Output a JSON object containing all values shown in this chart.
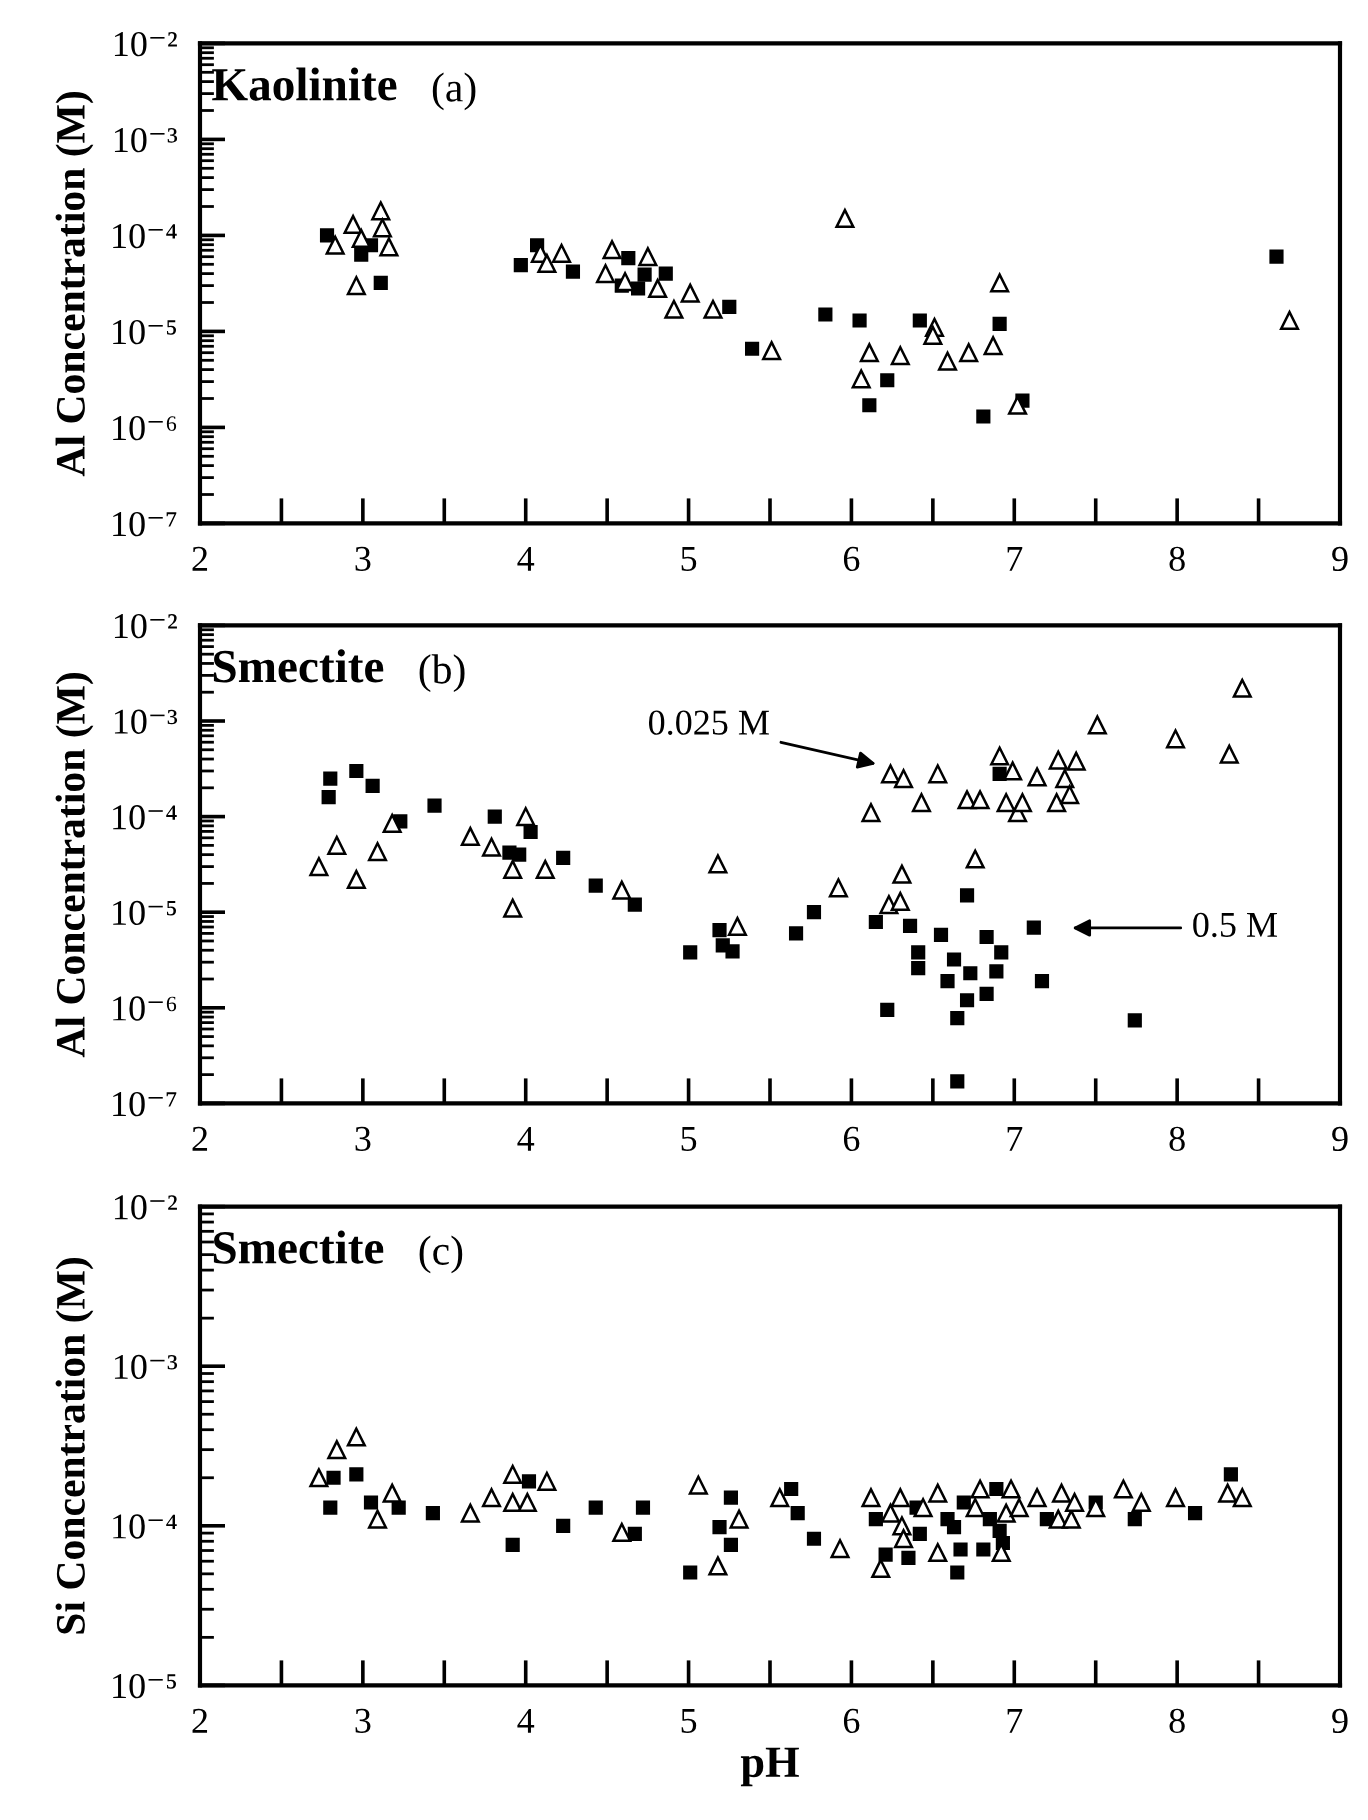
{
  "chart_data": [
    {
      "type": "scatter",
      "title": "Kaolinite",
      "subtitle": "(a)",
      "ylabel": "Al Concentration (M)",
      "log": true,
      "xlim": [
        2,
        9
      ],
      "xticks": [
        2,
        {
          "value": 2.5,
          "label": null
        },
        3,
        {
          "value": 3.5,
          "label": null
        },
        4,
        {
          "value": 4.5,
          "label": null
        },
        5,
        {
          "value": 5.5,
          "label": null
        },
        6,
        {
          "value": 6.5,
          "label": null
        },
        7,
        {
          "value": 7.5,
          "label": null
        },
        8,
        {
          "value": 8.5,
          "label": null
        },
        9
      ],
      "ylim": [
        1e-07,
        0.01
      ],
      "yticks": [
        {
          "value": 1e-07,
          "label": "10⁻⁷"
        },
        {
          "value": 1e-06,
          "label": "10⁻⁶"
        },
        {
          "value": 1e-05,
          "label": "10⁻⁵"
        },
        {
          "value": 0.0001,
          "label": "10⁻⁴"
        },
        {
          "value": 0.001,
          "label": "10⁻³"
        },
        {
          "value": 0.01,
          "label": "10⁻²"
        }
      ],
      "series": [
        {
          "color": "#000000",
          "marker": "square",
          "x": [
            2.78,
            2.99,
            3.05,
            3.11,
            3.97,
            4.07,
            4.29,
            4.63,
            4.59,
            4.69,
            4.73,
            4.86,
            5.25,
            5.39,
            5.84,
            6.05,
            6.11,
            6.22,
            6.42,
            6.91,
            6.81,
            7.05,
            8.61
          ],
          "values": [
            0.0001,
            6.3e-05,
            7.9e-05,
            3.2e-05,
            4.9e-05,
            7.9e-05,
            4.2e-05,
            5.8e-05,
            3e-05,
            2.8e-05,
            3.9e-05,
            4e-05,
            1.8e-05,
            6.6e-06,
            1.5e-05,
            1.3e-05,
            1.7e-06,
            3.1e-06,
            1.3e-05,
            1.2e-05,
            1.3e-06,
            1.9e-06,
            6e-05
          ]
        },
        {
          "color": "#ffffff",
          "marker": "triangle",
          "x": [
            2.83,
            2.94,
            2.99,
            3.11,
            3.12,
            3.16,
            2.96,
            4.09,
            4.13,
            4.22,
            4.53,
            4.49,
            4.61,
            4.75,
            4.81,
            4.91,
            5.01,
            5.15,
            5.51,
            5.96,
            6.11,
            6.06,
            6.3,
            6.51,
            6.5,
            6.59,
            6.72,
            6.87,
            6.91,
            7.02,
            8.69
          ],
          "values": [
            7.9e-05,
            0.00013,
            9.3e-05,
            0.00018,
            0.00012,
            7.6e-05,
            3e-05,
            6.5e-05,
            5.1e-05,
            6.5e-05,
            7.1e-05,
            4e-05,
            3.3e-05,
            6e-05,
            2.8e-05,
            1.7e-05,
            2.5e-05,
            1.7e-05,
            6.3e-06,
            0.00015,
            6e-06,
            3.2e-06,
            5.6e-06,
            1.1e-05,
            9.1e-06,
            4.9e-06,
            6e-06,
            7.1e-06,
            3.2e-05,
            1.7e-06,
            1.3e-05
          ]
        }
      ]
    },
    {
      "type": "scatter",
      "title": "Smectite",
      "subtitle": "(b)",
      "ylabel": "Al Concentration (M)",
      "log": true,
      "xlim": [
        2,
        9
      ],
      "xticks": [
        2,
        {
          "value": 2.5,
          "label": null
        },
        3,
        {
          "value": 3.5,
          "label": null
        },
        4,
        {
          "value": 4.5,
          "label": null
        },
        5,
        {
          "value": 5.5,
          "label": null
        },
        6,
        {
          "value": 6.5,
          "label": null
        },
        7,
        {
          "value": 7.5,
          "label": null
        },
        8,
        {
          "value": 8.5,
          "label": null
        },
        9
      ],
      "ylim": [
        1e-07,
        0.01
      ],
      "yticks": [
        {
          "value": 1e-07,
          "label": "10⁻⁷"
        },
        {
          "value": 1e-06,
          "label": "10⁻⁶"
        },
        {
          "value": 1e-05,
          "label": "10⁻⁵"
        },
        {
          "value": 0.0001,
          "label": "10⁻⁴"
        },
        {
          "value": 0.001,
          "label": "10⁻³"
        },
        {
          "value": 0.01,
          "label": "10⁻²"
        }
      ],
      "annotations": [
        "0.025 M",
        "0.5 M"
      ],
      "series": [
        {
          "color": "#000000",
          "marker": "square",
          "x": [
            2.8,
            2.79,
            2.96,
            3.06,
            3.23,
            3.44,
            3.81,
            4.03,
            3.9,
            3.96,
            4.23,
            4.43,
            4.67,
            5.01,
            5.19,
            5.21,
            5.27,
            6.91,
            5.66,
            5.77,
            6.15,
            6.36,
            6.55,
            6.71,
            6.41,
            6.41,
            6.63,
            6.83,
            6.92,
            6.89,
            6.73,
            6.83,
            6.71,
            6.59,
            6.65,
            6.22,
            7.12,
            7.17,
            7.74,
            6.65
          ],
          "values": [
            0.00025,
            0.00016,
            0.0003,
            0.00021,
            8.9e-05,
            0.00013,
            0.0001,
            6.9e-05,
            4.2e-05,
            4e-05,
            3.7e-05,
            1.9e-05,
            1.2e-05,
            3.8e-06,
            6.5e-06,
            4.5e-06,
            3.9e-06,
            0.00028,
            6e-06,
            1e-05,
            7.9e-06,
            7.2e-06,
            5.8e-06,
            1.5e-05,
            3.8e-06,
            2.6e-06,
            3.2e-06,
            5.5e-06,
            3.8e-06,
            2.4e-06,
            2.3e-06,
            1.4e-06,
            1.2e-06,
            1.9e-06,
            7.8e-07,
            9.5e-07,
            6.9e-06,
            1.9e-06,
            7.4e-07,
            1.7e-07
          ]
        },
        {
          "color": "#ffffff",
          "marker": "triangle",
          "x": [
            2.73,
            2.84,
            2.96,
            3.09,
            3.18,
            3.66,
            3.79,
            3.92,
            3.92,
            4.0,
            4.12,
            4.59,
            5.18,
            5.3,
            5.92,
            6.12,
            6.24,
            6.32,
            6.53,
            6.43,
            6.31,
            6.23,
            6.3,
            6.76,
            6.71,
            6.79,
            6.91,
            6.95,
            6.99,
            7.02,
            7.05,
            7.14,
            7.27,
            7.38,
            7.31,
            7.26,
            7.34,
            7.51,
            7.99,
            8.32,
            8.4
          ],
          "values": [
            3e-05,
            5e-05,
            2.2e-05,
            4.3e-05,
            8.5e-05,
            6.2e-05,
            4.8e-05,
            2.8e-05,
            1.1e-05,
            0.0001,
            2.8e-05,
            1.7e-05,
            3.2e-05,
            7.1e-06,
            1.8e-05,
            0.00011,
            0.00028,
            0.00025,
            0.00028,
            0.00014,
            2.5e-05,
            1.2e-05,
            1.3e-05,
            3.6e-05,
            0.00015,
            0.00015,
            0.00043,
            0.00014,
            0.0003,
            0.00011,
            0.00014,
            0.00026,
            0.00039,
            0.00038,
            0.00025,
            0.00014,
            0.00017,
            0.00091,
            0.00065,
            0.00045,
            0.0022
          ]
        }
      ]
    },
    {
      "type": "scatter",
      "title": "Smectite",
      "subtitle": "(c)",
      "ylabel": "Si Concentration (M)",
      "xlabel": "pH",
      "log": true,
      "xlim": [
        2,
        9
      ],
      "xticks": [
        2,
        {
          "value": 2.5,
          "label": null
        },
        3,
        {
          "value": 3.5,
          "label": null
        },
        4,
        {
          "value": 4.5,
          "label": null
        },
        5,
        {
          "value": 5.5,
          "label": null
        },
        6,
        {
          "value": 6.5,
          "label": null
        },
        7,
        {
          "value": 7.5,
          "label": null
        },
        8,
        {
          "value": 8.5,
          "label": null
        },
        9
      ],
      "ylim": [
        1e-05,
        0.01
      ],
      "yticks": [
        {
          "value": 1e-05,
          "label": "10⁻⁵"
        },
        {
          "value": 0.0001,
          "label": "10⁻⁴"
        },
        {
          "value": 0.001,
          "label": "10⁻³"
        },
        {
          "value": 0.01,
          "label": "10⁻²"
        }
      ],
      "series": [
        {
          "color": "#000000",
          "marker": "square",
          "x": [
            2.8,
            2.82,
            2.96,
            3.05,
            3.22,
            3.43,
            3.92,
            4.02,
            4.23,
            4.43,
            4.67,
            4.72,
            5.01,
            5.26,
            5.19,
            5.26,
            5.63,
            5.67,
            5.77,
            6.15,
            6.21,
            6.35,
            6.42,
            6.4,
            6.59,
            6.63,
            6.69,
            6.67,
            6.65,
            6.81,
            6.89,
            6.91,
            6.93,
            6.85,
            7.2,
            7.5,
            7.74,
            8.11,
            8.33
          ],
          "values": [
            0.00013,
            0.0002,
            0.00021,
            0.00014,
            0.00013,
            0.00012,
            7.6e-05,
            0.00019,
            0.0001,
            0.00013,
            8.9e-05,
            0.00013,
            5.1e-05,
            0.00015,
            9.8e-05,
            7.6e-05,
            0.00017,
            0.00012,
            8.3e-05,
            0.00011,
            6.6e-05,
            6.3e-05,
            8.9e-05,
            0.00013,
            0.00011,
            9.8e-05,
            0.00014,
            7.1e-05,
            5.1e-05,
            7.1e-05,
            0.00017,
            9.3e-05,
            7.8e-05,
            0.00011,
            0.00011,
            0.00014,
            0.00011,
            0.00012,
            0.00021
          ]
        },
        {
          "color": "#ffffff",
          "marker": "triangle",
          "x": [
            2.73,
            2.84,
            2.96,
            3.09,
            3.18,
            3.66,
            3.79,
            3.92,
            3.92,
            4.01,
            4.13,
            4.59,
            5.06,
            5.18,
            5.31,
            5.56,
            5.93,
            6.12,
            6.18,
            6.3,
            6.24,
            6.31,
            6.32,
            6.44,
            6.53,
            6.53,
            6.76,
            6.79,
            6.92,
            6.95,
            6.98,
            7.03,
            7.14,
            7.27,
            7.29,
            7.35,
            7.37,
            7.5,
            7.67,
            7.78,
            7.99,
            8.31,
            8.4
          ],
          "values": [
            0.0002,
            0.0003,
            0.00036,
            0.00011,
            0.00016,
            0.00012,
            0.00015,
            0.00021,
            0.00014,
            0.00014,
            0.00019,
            9.1e-05,
            0.00018,
            5.6e-05,
            0.00011,
            0.00015,
            7.2e-05,
            0.00015,
            5.4e-05,
            0.00015,
            0.00012,
            0.0001,
            8.3e-05,
            0.00013,
            6.8e-05,
            0.00016,
            0.00013,
            0.00017,
            6.8e-05,
            0.00012,
            0.00017,
            0.00013,
            0.00015,
            0.00011,
            0.00016,
            0.00011,
            0.00014,
            0.00013,
            0.00017,
            0.00014,
            0.00015,
            0.00016,
            0.00015
          ]
        }
      ]
    }
  ]
}
